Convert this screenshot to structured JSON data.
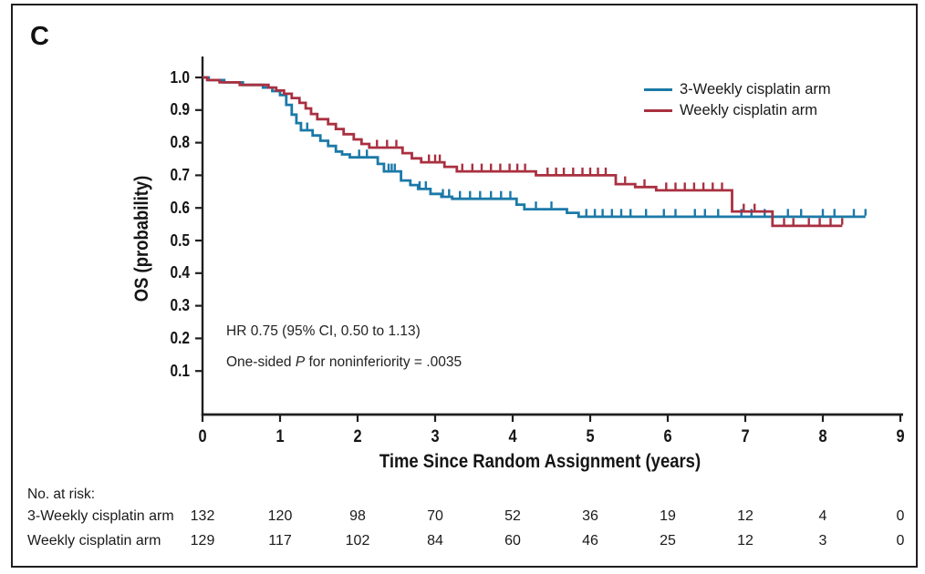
{
  "panel_label": "C",
  "colors": {
    "arm_3weekly": "#1b79a8",
    "arm_weekly": "#a93040",
    "axis": "#1f1f1f"
  },
  "legend": {
    "items": [
      {
        "label": "3-Weekly cisplatin arm",
        "color": "#1b79a8"
      },
      {
        "label": "Weekly cisplatin arm",
        "color": "#a93040"
      }
    ]
  },
  "annotation": {
    "line1": "HR 0.75 (95% CI, 0.50 to 1.13)",
    "line2_pre": "One-sided ",
    "line2_italic": "P",
    "line2_post": " for noninferiority = .0035"
  },
  "axes": {
    "ylabel": "OS (probability)",
    "xlabel": "Time Since Random Assignment (years)",
    "x_ticks": [
      "0",
      "1",
      "2",
      "3",
      "4",
      "5",
      "6",
      "7",
      "8",
      "9"
    ],
    "y_ticks": [
      "1.0",
      "0.9",
      "0.8",
      "0.7",
      "0.6",
      "0.5",
      "0.4",
      "0.3",
      "0.2",
      "0.1"
    ]
  },
  "risk_table": {
    "title": "No. at risk:",
    "rows": [
      {
        "label": "3-Weekly cisplatin arm",
        "values": [
          "132",
          "120",
          "98",
          "70",
          "52",
          "36",
          "19",
          "12",
          "4",
          "0"
        ]
      },
      {
        "label": "Weekly cisplatin arm",
        "values": [
          "129",
          "117",
          "102",
          "84",
          "60",
          "46",
          "25",
          "12",
          "3",
          "0"
        ]
      }
    ]
  },
  "chart_data": {
    "type": "line",
    "subtype": "kaplan-meier-step",
    "title": "",
    "xlabel": "Time Since Random Assignment (years)",
    "ylabel": "OS (probability)",
    "xlim": [
      0,
      9
    ],
    "ylim": [
      0,
      1.0
    ],
    "x_tick_values": [
      0,
      1,
      2,
      3,
      4,
      5,
      6,
      7,
      8,
      9
    ],
    "y_tick_values": [
      1.0,
      0.9,
      0.8,
      0.7,
      0.6,
      0.5,
      0.4,
      0.3,
      0.2,
      0.1
    ],
    "grid": false,
    "legend_position": "top-right",
    "hr_text": "HR 0.75 (95% CI, 0.50 to 1.13)",
    "p_text": "One-sided P for noninferiority = .0035",
    "series": [
      {
        "name": "3-Weekly cisplatin arm",
        "color": "#1b79a8",
        "at_risk": [
          132,
          120,
          98,
          70,
          52,
          36,
          19,
          12,
          4,
          0
        ],
        "steps": [
          [
            0,
            1.0
          ],
          [
            0.08,
            0.992
          ],
          [
            0.28,
            0.985
          ],
          [
            0.52,
            0.977
          ],
          [
            0.78,
            0.969
          ],
          [
            0.9,
            0.958
          ],
          [
            1.0,
            0.946
          ],
          [
            1.08,
            0.916
          ],
          [
            1.15,
            0.886
          ],
          [
            1.21,
            0.86
          ],
          [
            1.27,
            0.838
          ],
          [
            1.42,
            0.822
          ],
          [
            1.52,
            0.806
          ],
          [
            1.62,
            0.79
          ],
          [
            1.72,
            0.773
          ],
          [
            1.8,
            0.764
          ],
          [
            1.9,
            0.755
          ],
          [
            2.26,
            0.735
          ],
          [
            2.34,
            0.712
          ],
          [
            2.56,
            0.684
          ],
          [
            2.68,
            0.67
          ],
          [
            2.78,
            0.658
          ],
          [
            2.94,
            0.643
          ],
          [
            3.08,
            0.634
          ],
          [
            3.22,
            0.628
          ],
          [
            4.05,
            0.61
          ],
          [
            4.15,
            0.596
          ],
          [
            4.7,
            0.585
          ],
          [
            4.85,
            0.573
          ],
          [
            8.55,
            0.573
          ]
        ],
        "censors": [
          [
            1.35,
            0.838
          ],
          [
            2.02,
            0.755
          ],
          [
            2.12,
            0.755
          ],
          [
            2.4,
            0.712
          ],
          [
            2.44,
            0.712
          ],
          [
            2.48,
            0.712
          ],
          [
            2.8,
            0.658
          ],
          [
            2.88,
            0.658
          ],
          [
            3.1,
            0.634
          ],
          [
            3.18,
            0.634
          ],
          [
            3.32,
            0.628
          ],
          [
            3.45,
            0.628
          ],
          [
            3.58,
            0.628
          ],
          [
            3.72,
            0.628
          ],
          [
            3.85,
            0.628
          ],
          [
            3.97,
            0.628
          ],
          [
            4.3,
            0.596
          ],
          [
            4.5,
            0.596
          ],
          [
            4.95,
            0.573
          ],
          [
            5.06,
            0.573
          ],
          [
            5.16,
            0.573
          ],
          [
            5.28,
            0.573
          ],
          [
            5.4,
            0.573
          ],
          [
            5.52,
            0.573
          ],
          [
            5.72,
            0.573
          ],
          [
            5.95,
            0.573
          ],
          [
            6.1,
            0.573
          ],
          [
            6.35,
            0.573
          ],
          [
            6.48,
            0.573
          ],
          [
            6.65,
            0.573
          ],
          [
            6.95,
            0.573
          ],
          [
            7.08,
            0.573
          ],
          [
            7.25,
            0.573
          ],
          [
            7.55,
            0.573
          ],
          [
            7.72,
            0.573
          ],
          [
            8.0,
            0.573
          ],
          [
            8.15,
            0.573
          ],
          [
            8.4,
            0.573
          ],
          [
            8.55,
            0.573
          ]
        ]
      },
      {
        "name": "Weekly cisplatin arm",
        "color": "#a93040",
        "at_risk": [
          129,
          117,
          102,
          84,
          60,
          46,
          25,
          12,
          3,
          0
        ],
        "steps": [
          [
            0,
            1.0
          ],
          [
            0.06,
            0.992
          ],
          [
            0.22,
            0.985
          ],
          [
            0.48,
            0.977
          ],
          [
            0.85,
            0.969
          ],
          [
            0.95,
            0.96
          ],
          [
            1.05,
            0.95
          ],
          [
            1.15,
            0.937
          ],
          [
            1.25,
            0.922
          ],
          [
            1.33,
            0.905
          ],
          [
            1.4,
            0.888
          ],
          [
            1.48,
            0.872
          ],
          [
            1.62,
            0.857
          ],
          [
            1.72,
            0.842
          ],
          [
            1.82,
            0.826
          ],
          [
            1.95,
            0.81
          ],
          [
            2.05,
            0.796
          ],
          [
            2.15,
            0.785
          ],
          [
            2.58,
            0.768
          ],
          [
            2.7,
            0.752
          ],
          [
            2.82,
            0.74
          ],
          [
            3.12,
            0.726
          ],
          [
            3.28,
            0.712
          ],
          [
            4.3,
            0.7
          ],
          [
            5.33,
            0.673
          ],
          [
            5.58,
            0.664
          ],
          [
            5.85,
            0.654
          ],
          [
            6.83,
            0.589
          ],
          [
            7.35,
            0.545
          ],
          [
            8.25,
            0.545
          ]
        ],
        "censors": [
          [
            2.25,
            0.785
          ],
          [
            2.38,
            0.785
          ],
          [
            2.5,
            0.785
          ],
          [
            2.92,
            0.74
          ],
          [
            3.0,
            0.74
          ],
          [
            3.06,
            0.74
          ],
          [
            3.35,
            0.712
          ],
          [
            3.48,
            0.712
          ],
          [
            3.6,
            0.712
          ],
          [
            3.72,
            0.712
          ],
          [
            3.84,
            0.712
          ],
          [
            3.96,
            0.712
          ],
          [
            4.06,
            0.712
          ],
          [
            4.16,
            0.712
          ],
          [
            4.45,
            0.7
          ],
          [
            4.56,
            0.7
          ],
          [
            4.66,
            0.7
          ],
          [
            4.78,
            0.7
          ],
          [
            4.9,
            0.7
          ],
          [
            5.0,
            0.7
          ],
          [
            5.1,
            0.7
          ],
          [
            5.2,
            0.7
          ],
          [
            5.45,
            0.673
          ],
          [
            5.7,
            0.664
          ],
          [
            5.98,
            0.654
          ],
          [
            6.1,
            0.654
          ],
          [
            6.22,
            0.654
          ],
          [
            6.34,
            0.654
          ],
          [
            6.46,
            0.654
          ],
          [
            6.58,
            0.654
          ],
          [
            6.7,
            0.654
          ],
          [
            6.98,
            0.589
          ],
          [
            7.12,
            0.589
          ],
          [
            7.5,
            0.545
          ],
          [
            7.62,
            0.545
          ],
          [
            7.82,
            0.545
          ],
          [
            7.96,
            0.545
          ],
          [
            8.1,
            0.545
          ],
          [
            8.25,
            0.545
          ]
        ]
      }
    ]
  }
}
